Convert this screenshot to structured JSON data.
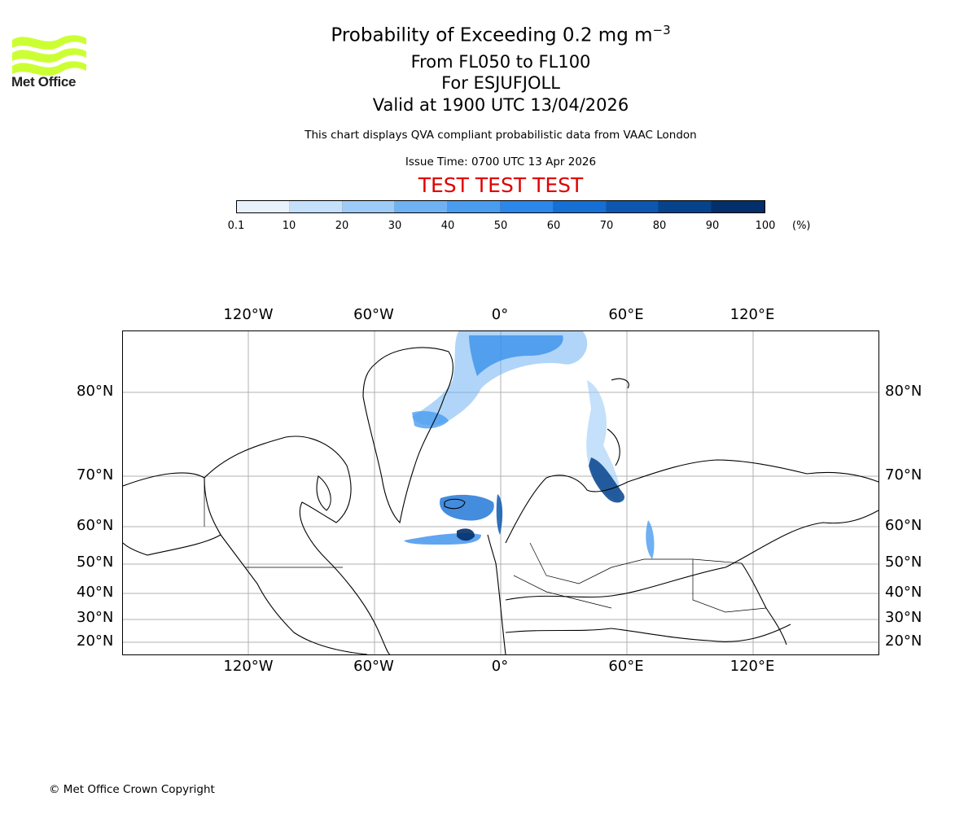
{
  "logo": {
    "text": "Met Office",
    "color": "#ccff33"
  },
  "header": {
    "title_main": "Probability of Exceeding 0.2 mg m",
    "title_sup": "−3",
    "flight_levels": "From FL050 to FL100",
    "volcano": "For ESJUFJOLL",
    "valid_time": "Valid at 1900 UTC 13/04/2026",
    "disclaimer": "This chart displays QVA compliant probabilistic data from VAAC London",
    "issue_time": "Issue Time: 0700 UTC 13 Apr 2026",
    "test_banner": "TEST TEST TEST"
  },
  "colorbar": {
    "ticks": [
      "0.1",
      "10",
      "20",
      "30",
      "40",
      "50",
      "60",
      "70",
      "80",
      "90",
      "100"
    ],
    "unit": "(%)",
    "colors": [
      "#e8f2fd",
      "#c4e0fa",
      "#9dcbf7",
      "#6fb2f3",
      "#4a9cf0",
      "#2b87ea",
      "#156fd4",
      "#0c58b0",
      "#06438c",
      "#03306b"
    ]
  },
  "map": {
    "lon_labels": [
      "120°W",
      "60°W",
      "0°",
      "60°E",
      "120°E"
    ],
    "lat_labels": [
      "80°N",
      "70°N",
      "60°N",
      "50°N",
      "40°N",
      "30°N",
      "20°N"
    ]
  },
  "footer": {
    "copyright": "© Met Office Crown Copyright"
  }
}
